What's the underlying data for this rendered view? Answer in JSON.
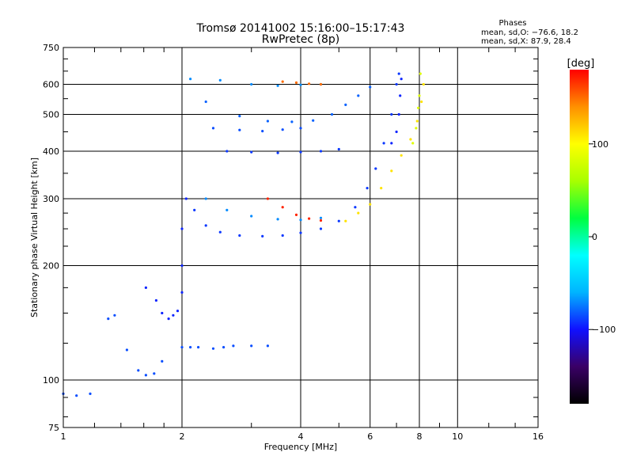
{
  "title": {
    "line1": "Tromsø 20141002 15:16:00–15:17:43",
    "line2": "RwPretec (8p)"
  },
  "stats": {
    "label": "Phases",
    "line_o": "mean, sd,O: −76.6, 18.2",
    "line_x": "mean, sd,X:  87.9, 28.4"
  },
  "chart_data": {
    "type": "scatter",
    "xlabel": "Frequency [MHz]",
    "ylabel": "Stationary phase Virtual Height [km]",
    "x_scale": "log",
    "y_scale": "log",
    "xlim": [
      1,
      16
    ],
    "ylim": [
      75,
      750
    ],
    "x_ticks": [
      1,
      2,
      4,
      6,
      8,
      10,
      16
    ],
    "x_tick_labels": [
      "1",
      "2",
      "4",
      "6",
      "8",
      "10",
      "16"
    ],
    "y_ticks": [
      75,
      100,
      200,
      300,
      400,
      500,
      600,
      750
    ],
    "y_tick_labels": [
      "75",
      "100",
      "200",
      "300",
      "400",
      "500",
      "600",
      "750"
    ],
    "grid": true,
    "colorbar": {
      "label": "[deg]",
      "range": [
        -180,
        180
      ],
      "ticks": [
        100,
        0,
        -100
      ],
      "tick_labels": [
        "100",
        "0",
        "−100"
      ],
      "colors": [
        "#000000",
        "#3a0066",
        "#1010ff",
        "#00b4ff",
        "#00ffff",
        "#00ff40",
        "#a8ff00",
        "#ffff00",
        "#ff9000",
        "#ff0000"
      ]
    },
    "traces": [
      {
        "name": "",
        "phase": -85,
        "points": [
          [
            1.0,
            92
          ],
          [
            1.08,
            91
          ],
          [
            1.17,
            92
          ],
          [
            1.3,
            145
          ],
          [
            1.35,
            148
          ],
          [
            1.45,
            120
          ],
          [
            1.55,
            106
          ],
          [
            1.62,
            103
          ],
          [
            1.7,
            104
          ],
          [
            1.78,
            112
          ]
        ]
      },
      {
        "name": "",
        "phase": -95,
        "points": [
          [
            1.62,
            175
          ],
          [
            1.72,
            162
          ],
          [
            1.78,
            150
          ],
          [
            1.85,
            145
          ],
          [
            1.9,
            148
          ],
          [
            1.95,
            152
          ],
          [
            2.0,
            170
          ],
          [
            2.0,
            200
          ],
          [
            2.0,
            250
          ],
          [
            2.05,
            300
          ]
        ]
      },
      {
        "name": "",
        "phase": -85,
        "points": [
          [
            2.0,
            122
          ],
          [
            2.1,
            122
          ],
          [
            2.2,
            122
          ],
          [
            2.4,
            121
          ],
          [
            2.55,
            122
          ],
          [
            2.7,
            123
          ],
          [
            3.0,
            123
          ],
          [
            3.3,
            123
          ]
        ]
      },
      {
        "name": "",
        "phase": -90,
        "points": [
          [
            2.15,
            280
          ],
          [
            2.3,
            255
          ],
          [
            2.5,
            245
          ],
          [
            2.8,
            240
          ],
          [
            3.2,
            239
          ],
          [
            3.6,
            240
          ],
          [
            4.0,
            244
          ],
          [
            4.5,
            250
          ],
          [
            5.0,
            262
          ],
          [
            5.5,
            285
          ],
          [
            5.9,
            320
          ],
          [
            6.2,
            360
          ],
          [
            6.5,
            420
          ],
          [
            6.8,
            500
          ],
          [
            7.0,
            600
          ],
          [
            7.1,
            640
          ]
        ]
      },
      {
        "name": "",
        "phase": 110,
        "points": [
          [
            5.2,
            262
          ],
          [
            5.6,
            275
          ],
          [
            6.0,
            290
          ],
          [
            6.4,
            320
          ],
          [
            6.8,
            355
          ],
          [
            7.2,
            390
          ],
          [
            7.6,
            430
          ],
          [
            7.9,
            480
          ],
          [
            8.1,
            540
          ],
          [
            8.2,
            600
          ]
        ]
      },
      {
        "name": "",
        "phase": -70,
        "points": [
          [
            2.3,
            300
          ],
          [
            2.6,
            280
          ],
          [
            3.0,
            270
          ],
          [
            3.5,
            265
          ],
          [
            4.0,
            264
          ],
          [
            4.5,
            267
          ]
        ]
      },
      {
        "name": "",
        "phase": 170,
        "points": [
          [
            3.3,
            300
          ],
          [
            3.6,
            285
          ],
          [
            3.9,
            272
          ],
          [
            4.2,
            266
          ],
          [
            4.5,
            263
          ]
        ]
      },
      {
        "name": "",
        "phase": -80,
        "points": [
          [
            2.3,
            540
          ],
          [
            2.8,
            495
          ],
          [
            3.3,
            480
          ],
          [
            3.8,
            478
          ],
          [
            4.3,
            482
          ],
          [
            4.8,
            500
          ],
          [
            5.2,
            530
          ],
          [
            5.6,
            560
          ],
          [
            6.0,
            590
          ]
        ]
      },
      {
        "name": "",
        "phase": -90,
        "points": [
          [
            2.6,
            400
          ],
          [
            3.0,
            398
          ],
          [
            3.5,
            396
          ],
          [
            4.0,
            398
          ],
          [
            4.5,
            400
          ],
          [
            5.0,
            405
          ]
        ]
      },
      {
        "name": "",
        "phase": -85,
        "points": [
          [
            2.4,
            460
          ],
          [
            2.8,
            455
          ],
          [
            3.2,
            452
          ],
          [
            3.6,
            456
          ],
          [
            4.0,
            460
          ]
        ]
      },
      {
        "name": "",
        "phase": -70,
        "points": [
          [
            2.1,
            620
          ],
          [
            2.5,
            615
          ],
          [
            3.0,
            600
          ],
          [
            3.5,
            595
          ],
          [
            4.0,
            598
          ],
          [
            4.5,
            600
          ]
        ]
      },
      {
        "name": "",
        "phase": 150,
        "points": [
          [
            3.6,
            610
          ],
          [
            3.9,
            606
          ],
          [
            4.2,
            602
          ],
          [
            4.5,
            600
          ]
        ]
      },
      {
        "name": "",
        "phase": -95,
        "points": [
          [
            6.8,
            420
          ],
          [
            7.0,
            450
          ],
          [
            7.1,
            500
          ],
          [
            7.15,
            560
          ],
          [
            7.2,
            620
          ]
        ]
      },
      {
        "name": "",
        "phase": 85,
        "points": [
          [
            7.7,
            420
          ],
          [
            7.85,
            460
          ],
          [
            7.95,
            520
          ],
          [
            8.0,
            560
          ],
          [
            8.05,
            640
          ]
        ]
      }
    ]
  }
}
